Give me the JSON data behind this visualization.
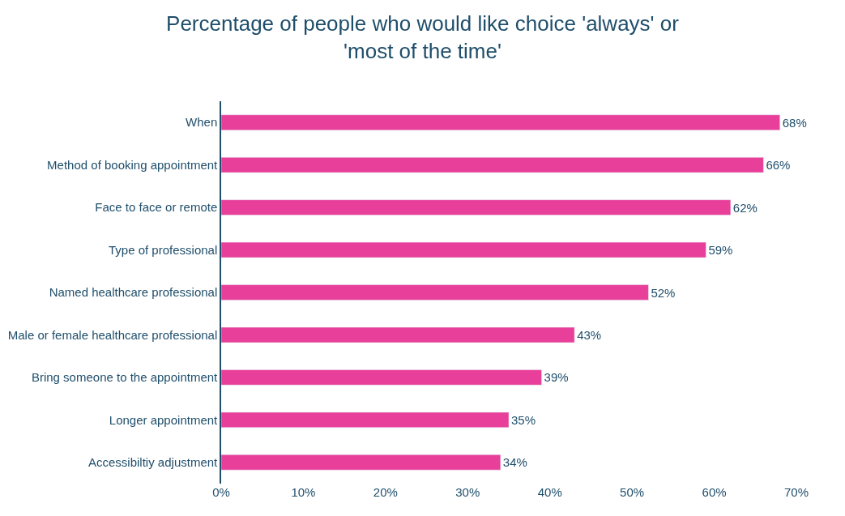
{
  "chart_data": {
    "type": "bar",
    "orientation": "horizontal",
    "title": "Percentage of people who would like choice 'always' or\n'most of the time'",
    "categories": [
      "When",
      "Method of booking appointment",
      "Face to face or remote",
      "Type of professional",
      "Named healthcare professional",
      "Male or female healthcare professional",
      "Bring someone to the appointment",
      "Longer appointment",
      "Accessibiltiy adjustment"
    ],
    "values": [
      68,
      66,
      62,
      59,
      52,
      43,
      39,
      35,
      34
    ],
    "value_labels": [
      "68%",
      "66%",
      "62%",
      "59%",
      "52%",
      "43%",
      "39%",
      "35%",
      "34%"
    ],
    "color": "#e8409a",
    "xlim": [
      0,
      70
    ],
    "xticks": [
      {
        "value": 0,
        "label": "0%"
      },
      {
        "value": 10,
        "label": "10%"
      },
      {
        "value": 20,
        "label": "20%"
      },
      {
        "value": 30,
        "label": "30%"
      },
      {
        "value": 40,
        "label": "40%"
      },
      {
        "value": 50,
        "label": "50%"
      },
      {
        "value": 60,
        "label": "60%"
      },
      {
        "value": 70,
        "label": "70%"
      }
    ],
    "legend": false
  }
}
